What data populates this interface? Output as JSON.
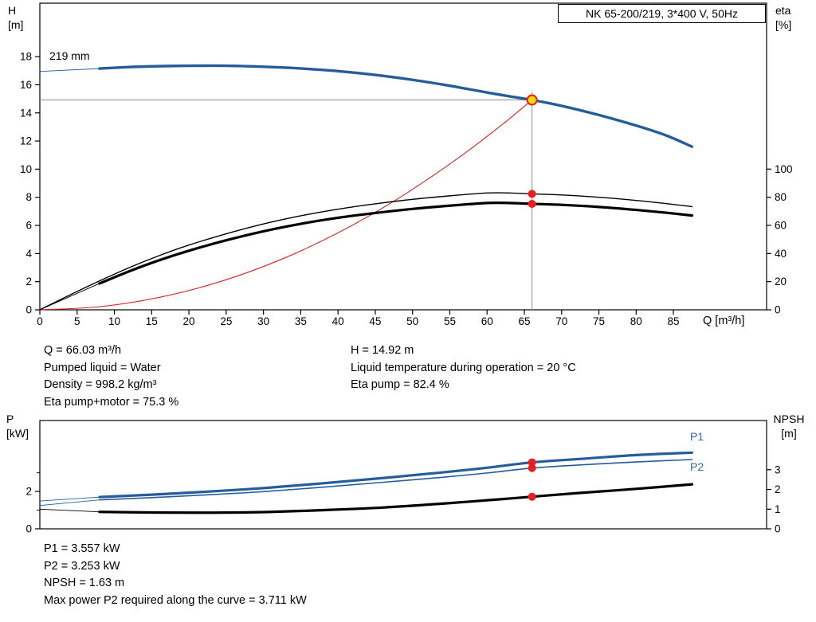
{
  "axis_corner": {
    "top_left": [
      "H",
      "[m]"
    ],
    "top_right": [
      "eta",
      "[%]"
    ],
    "bottom_left": [
      "P",
      "[kW]"
    ],
    "bottom_right": [
      "NPSH",
      "[m]"
    ]
  },
  "curve_labels": {
    "impeller": "219 mm",
    "p1": "P1",
    "p2": "P2"
  },
  "info": {
    "top_left": [
      "Q = 66.03 m³/h",
      "Pumped liquid = Water",
      "Density = 998.2 kg/m³",
      "Eta pump+motor = 75.3 %"
    ],
    "top_right": [
      "H = 14.92 m",
      "Liquid temperature during operation = 20 °C",
      "Eta pump = 82.4 %"
    ],
    "bottom": [
      "P1 = 3.557 kW",
      "P2 = 3.253 kW",
      "NPSH = 1.63 m",
      "Max power P2 required along the curve = 3.711 kW"
    ]
  },
  "colors": {
    "curve_blue": "#255d9a",
    "curve_black": "#000000",
    "system_red": "#d92121",
    "dot_red": "#ee1c1c",
    "dot_yellow": "#ffd900",
    "ref_gray": "#8c8c8c",
    "label_blue": "#2e6bb0"
  },
  "chart_data": [
    {
      "type": "line",
      "title": "NK 65-200/219, 3*400 V, 50Hz",
      "xlabel": "Q [m³/h]",
      "ylabel_left": "H [m]",
      "ylabel_right": "eta [%]",
      "xlim": [
        0,
        97.5
      ],
      "ylim_left": [
        0,
        21.8
      ],
      "ylim_right": [
        0,
        217.9
      ],
      "x_ticks": [
        0,
        5,
        10,
        15,
        20,
        25,
        30,
        35,
        40,
        45,
        50,
        55,
        60,
        65,
        70,
        75,
        80,
        85
      ],
      "y_ticks_left": [
        0,
        2,
        4,
        6,
        8,
        10,
        12,
        14,
        16,
        18
      ],
      "y_ticks_right": [
        0,
        20,
        40,
        60,
        80,
        100
      ],
      "ref_lines": [
        {
          "type": "v",
          "q": 66.03,
          "v1": 0,
          "v2": 15.5,
          "axis": "left",
          "color": "#8c8c8c",
          "width": 1
        },
        {
          "type": "h",
          "v": 14.92,
          "q1": 0,
          "q2": 66.03,
          "axis": "left",
          "color": "#8c8c8c",
          "width": 1
        }
      ],
      "series": [
        {
          "name": "head-curve-lead",
          "axis": "left",
          "color": "#255d9a",
          "width": 0.9,
          "points": [
            [
              0,
              16.95
            ],
            [
              8,
              17.15
            ]
          ]
        },
        {
          "name": "eta-pump-motor-lead",
          "axis": "right",
          "color": "#000000",
          "width": 0.9,
          "points": [
            [
              0,
              0
            ],
            [
              8,
              18.7
            ]
          ]
        },
        {
          "name": "system-curve",
          "axis": "left",
          "color": "#d92121",
          "width": 1.1,
          "points": [
            [
              0,
              0
            ],
            [
              8,
              0.22
            ],
            [
              16,
              0.88
            ],
            [
              24,
              1.97
            ],
            [
              32,
              3.5
            ],
            [
              40,
              5.47
            ],
            [
              48,
              7.89
            ],
            [
              56,
              10.74
            ],
            [
              62,
              13.16
            ],
            [
              66.03,
              14.92
            ]
          ]
        },
        {
          "name": "eta-pump",
          "axis": "right",
          "color": "#000000",
          "width": 1.4,
          "points": [
            [
              0,
              0
            ],
            [
              4,
              10.5
            ],
            [
              8,
              20.5
            ],
            [
              12,
              30
            ],
            [
              16,
              38.5
            ],
            [
              20,
              46
            ],
            [
              25,
              54
            ],
            [
              30,
              61
            ],
            [
              35,
              66.8
            ],
            [
              40,
              71.5
            ],
            [
              45,
              75.3
            ],
            [
              50,
              78.5
            ],
            [
              55,
              81
            ],
            [
              60,
              83
            ],
            [
              63,
              83
            ],
            [
              66.03,
              82.4
            ],
            [
              70,
              81.6
            ],
            [
              75,
              80
            ],
            [
              80,
              77.7
            ],
            [
              84,
              75.5
            ],
            [
              87.5,
              73.3
            ]
          ]
        },
        {
          "name": "eta-pump-motor",
          "axis": "right",
          "color": "#000000",
          "width": 3.2,
          "points": [
            [
              8,
              18.7
            ],
            [
              12,
              27.4
            ],
            [
              16,
              35.2
            ],
            [
              20,
              42
            ],
            [
              25,
              49.4
            ],
            [
              30,
              55.8
            ],
            [
              35,
              61.1
            ],
            [
              40,
              65.4
            ],
            [
              45,
              68.8
            ],
            [
              50,
              71.7
            ],
            [
              55,
              74
            ],
            [
              60,
              75.9
            ],
            [
              63,
              75.9
            ],
            [
              66.03,
              75.3
            ],
            [
              70,
              74.6
            ],
            [
              75,
              73.1
            ],
            [
              80,
              71
            ],
            [
              84,
              69
            ],
            [
              87.5,
              67
            ]
          ]
        },
        {
          "name": "head-curve-219mm",
          "axis": "left",
          "color": "#255d9a",
          "width": 3.4,
          "points": [
            [
              8,
              17.15
            ],
            [
              12,
              17.26
            ],
            [
              16,
              17.32
            ],
            [
              20,
              17.35
            ],
            [
              25,
              17.35
            ],
            [
              30,
              17.28
            ],
            [
              35,
              17.16
            ],
            [
              40,
              16.97
            ],
            [
              45,
              16.7
            ],
            [
              50,
              16.35
            ],
            [
              55,
              15.93
            ],
            [
              60,
              15.45
            ],
            [
              63,
              15.18
            ],
            [
              66.03,
              14.92
            ],
            [
              70,
              14.5
            ],
            [
              75,
              13.85
            ],
            [
              80,
              13.1
            ],
            [
              84,
              12.4
            ],
            [
              87.5,
              11.6
            ]
          ]
        }
      ],
      "markers": [
        {
          "name": "duty-point-head",
          "q": 66.03,
          "v": 14.92,
          "axis": "left",
          "r": 6,
          "fill": "#ffd900",
          "stroke": "#ee1c1c",
          "sw": 2
        },
        {
          "name": "duty-point-eta-pump",
          "q": 66.03,
          "v": 82.4,
          "axis": "right",
          "r": 5,
          "fill": "#ee1c1c"
        },
        {
          "name": "duty-point-eta-pump-motor",
          "q": 66.03,
          "v": 75.3,
          "axis": "right",
          "r": 5,
          "fill": "#ee1c1c"
        }
      ]
    },
    {
      "type": "line",
      "xlabel": "",
      "ylabel_left": "P [kW]",
      "ylabel_right": "NPSH [m]",
      "xlim": [
        0,
        97.5
      ],
      "ylim_left": [
        0,
        5.8
      ],
      "ylim_right": [
        0,
        5.5
      ],
      "x_ticks": [],
      "y_ticks_left": [
        0,
        2
      ],
      "y_minor_left": [
        1,
        3
      ],
      "y_ticks_right": [
        0,
        1,
        2,
        3
      ],
      "ref_lines": [],
      "series": [
        {
          "name": "p1-lead",
          "axis": "left",
          "color": "#255d9a",
          "width": 0.9,
          "points": [
            [
              0,
              1.49
            ],
            [
              8,
              1.7
            ]
          ]
        },
        {
          "name": "p2-lead",
          "axis": "left",
          "color": "#255d9a",
          "width": 0.9,
          "points": [
            [
              0,
              1.25
            ],
            [
              8,
              1.55
            ]
          ]
        },
        {
          "name": "npsh-lead",
          "axis": "right",
          "color": "#000000",
          "width": 0.9,
          "points": [
            [
              0,
              1.0
            ],
            [
              8,
              0.86
            ]
          ]
        },
        {
          "name": "p2-curve",
          "axis": "left",
          "color": "#255d9a",
          "width": 1.6,
          "points": [
            [
              8,
              1.55
            ],
            [
              15,
              1.67
            ],
            [
              22,
              1.81
            ],
            [
              30,
              1.99
            ],
            [
              38,
              2.23
            ],
            [
              46,
              2.49
            ],
            [
              54,
              2.76
            ],
            [
              60,
              2.99
            ],
            [
              66.03,
              3.253
            ],
            [
              72,
              3.41
            ],
            [
              80,
              3.58
            ],
            [
              87.5,
              3.71
            ]
          ]
        },
        {
          "name": "p1-curve",
          "axis": "left",
          "color": "#255d9a",
          "width": 3.2,
          "points": [
            [
              8,
              1.7
            ],
            [
              15,
              1.83
            ],
            [
              22,
              1.98
            ],
            [
              30,
              2.18
            ],
            [
              38,
              2.44
            ],
            [
              46,
              2.72
            ],
            [
              54,
              3.02
            ],
            [
              60,
              3.27
            ],
            [
              66.03,
              3.557
            ],
            [
              72,
              3.73
            ],
            [
              80,
              3.95
            ],
            [
              87.5,
              4.08
            ]
          ]
        },
        {
          "name": "npsh-curve",
          "axis": "right",
          "color": "#000000",
          "width": 3.2,
          "points": [
            [
              8,
              0.86
            ],
            [
              15,
              0.83
            ],
            [
              22,
              0.82
            ],
            [
              30,
              0.85
            ],
            [
              38,
              0.95
            ],
            [
              46,
              1.08
            ],
            [
              54,
              1.28
            ],
            [
              60,
              1.45
            ],
            [
              66.03,
              1.63
            ],
            [
              72,
              1.81
            ],
            [
              80,
              2.03
            ],
            [
              87.5,
              2.26
            ]
          ]
        }
      ],
      "markers": [
        {
          "name": "duty-point-p1",
          "q": 66.03,
          "v": 3.557,
          "axis": "left",
          "r": 5,
          "fill": "#ee1c1c"
        },
        {
          "name": "duty-point-p2",
          "q": 66.03,
          "v": 3.253,
          "axis": "left",
          "r": 5,
          "fill": "#ee1c1c"
        },
        {
          "name": "duty-point-npsh",
          "q": 66.03,
          "v": 1.63,
          "axis": "right",
          "r": 5,
          "fill": "#ee1c1c"
        }
      ]
    }
  ]
}
